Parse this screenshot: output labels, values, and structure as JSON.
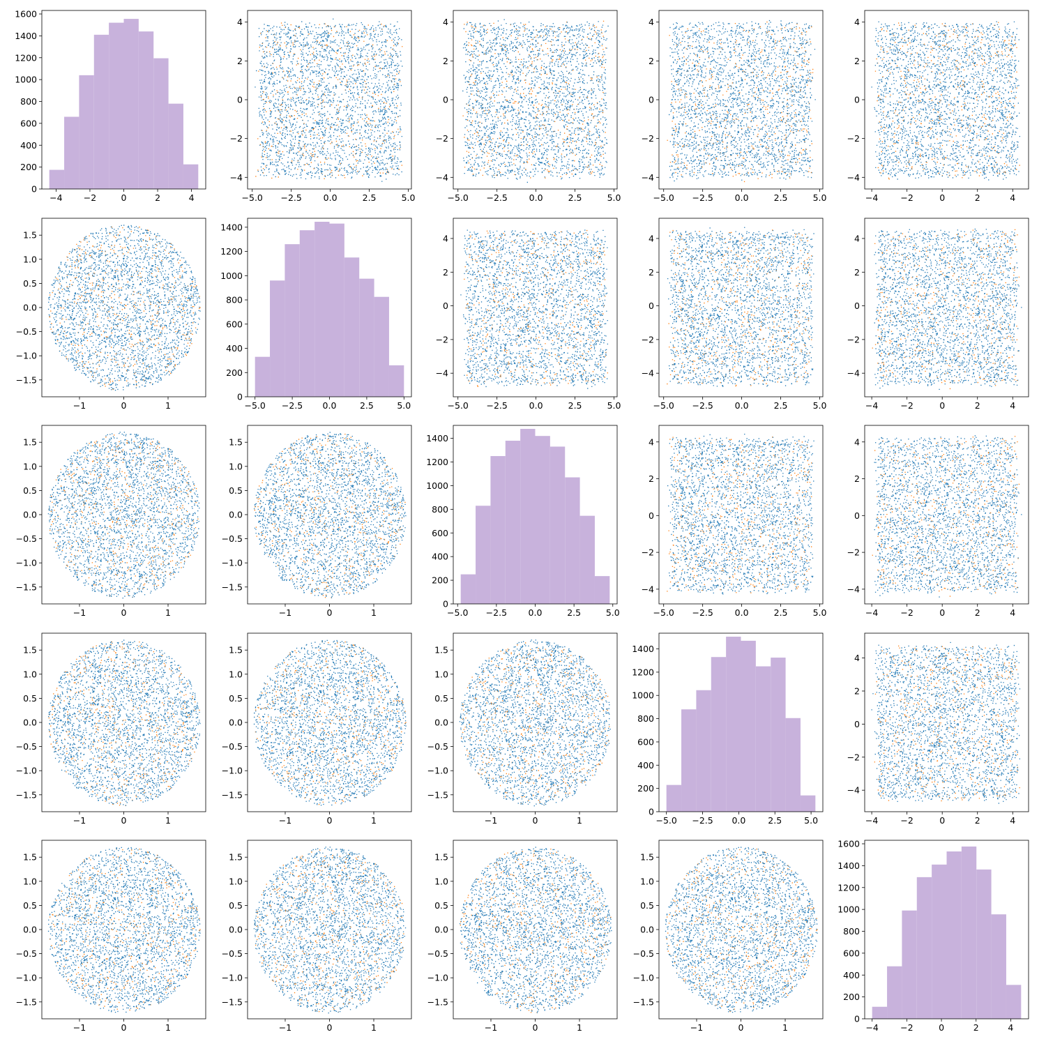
{
  "chart_data": {
    "type": "scatter-matrix",
    "n_dims": 5,
    "colors": {
      "primary": "#1f77b4",
      "secondary": "#ff7f0e",
      "histogram": "#c8b2dc"
    },
    "diagonal_histograms": [
      {
        "dim": 0,
        "bins": [
          -4.4,
          -3.52,
          -2.64,
          -1.76,
          -0.88,
          0.0,
          0.88,
          1.76,
          2.64,
          3.52,
          4.4
        ],
        "counts": [
          175,
          660,
          1040,
          1410,
          1520,
          1555,
          1440,
          1195,
          780,
          225
        ],
        "x_ticks": [
          "−4",
          "−2",
          "0",
          "2",
          "4"
        ],
        "y_ticks": [
          "0",
          "200",
          "400",
          "600",
          "800",
          "1000",
          "1200",
          "1400",
          "1600"
        ]
      },
      {
        "dim": 1,
        "bins": [
          -5.0,
          -4.0,
          -3.0,
          -2.0,
          -1.0,
          0.0,
          1.0,
          2.0,
          3.0,
          4.0,
          5.0
        ],
        "counts": [
          330,
          960,
          1260,
          1375,
          1445,
          1430,
          1150,
          975,
          825,
          260
        ],
        "x_ticks": [
          "−5.0",
          "−2.5",
          "0.0",
          "2.5",
          "5.0"
        ],
        "y_ticks": [
          "0",
          "200",
          "400",
          "600",
          "800",
          "1000",
          "1200",
          "1400"
        ]
      },
      {
        "dim": 2,
        "bins": [
          -4.8,
          -3.84,
          -2.88,
          -1.92,
          -0.96,
          0.0,
          0.96,
          1.92,
          2.88,
          3.84,
          4.8
        ],
        "counts": [
          250,
          830,
          1250,
          1380,
          1480,
          1420,
          1330,
          1070,
          745,
          235
        ],
        "x_ticks": [
          "−5.0",
          "−2.5",
          "0.0",
          "2.5",
          "5.0"
        ],
        "y_ticks": [
          "0",
          "200",
          "400",
          "600",
          "800",
          "1000",
          "1200",
          "1400"
        ]
      },
      {
        "dim": 3,
        "bins": [
          -5.0,
          -3.97,
          -2.94,
          -1.91,
          -0.88,
          0.15,
          1.18,
          2.21,
          3.24,
          4.27,
          5.3
        ],
        "counts": [
          230,
          880,
          1045,
          1330,
          1505,
          1470,
          1250,
          1325,
          805,
          140
        ],
        "x_ticks": [
          "−5.0",
          "−2.5",
          "0.0",
          "2.5",
          "5.0"
        ],
        "y_ticks": [
          "0",
          "200",
          "400",
          "600",
          "800",
          "1000",
          "1200",
          "1400"
        ]
      },
      {
        "dim": 4,
        "bins": [
          -4.0,
          -3.14,
          -2.28,
          -1.42,
          -0.56,
          0.3,
          1.16,
          2.02,
          2.88,
          3.74,
          4.6
        ],
        "counts": [
          110,
          480,
          990,
          1295,
          1410,
          1530,
          1575,
          1365,
          955,
          310
        ],
        "x_ticks": [
          "−4",
          "−2",
          "0",
          "2",
          "4"
        ],
        "y_ticks": [
          "0",
          "200",
          "400",
          "600",
          "800",
          "1000",
          "1200",
          "1400",
          "1600"
        ]
      }
    ],
    "upper_triangle_x_ticks": [
      [
        "−5.0",
        "−2.5",
        "0.0",
        "2.5",
        "5.0"
      ],
      [
        "−5.0",
        "−2.5",
        "0.0",
        "2.5",
        "5.0"
      ],
      [
        "−5.0",
        "−2.5",
        "0.0",
        "2.5",
        "5.0"
      ],
      [
        "−4",
        "−2",
        "0",
        "2",
        "4"
      ]
    ],
    "upper_triangle_y_ticks": [
      [
        "−4",
        "−2",
        "0",
        "2",
        "4"
      ],
      [
        "−4",
        "−2",
        "0",
        "2",
        "4"
      ],
      [
        "−4",
        "−2",
        "0",
        "2",
        "4"
      ],
      [
        "−4",
        "−2",
        "0",
        "2",
        "4"
      ]
    ],
    "lower_triangle_x_ticks": [
      "−1",
      "0",
      "1"
    ],
    "lower_triangle_y_ticks": [
      "−1.5",
      "−1.0",
      "−0.5",
      "0.0",
      "0.5",
      "1.0",
      "1.5"
    ],
    "scatter_description": "Off-diagonal cells: dense point clouds of ~12000 samples; upper triangle roughly uniform squares over about ±4.5, lower triangle discs of radius ~1.7. Blue majority, orange minority points."
  }
}
